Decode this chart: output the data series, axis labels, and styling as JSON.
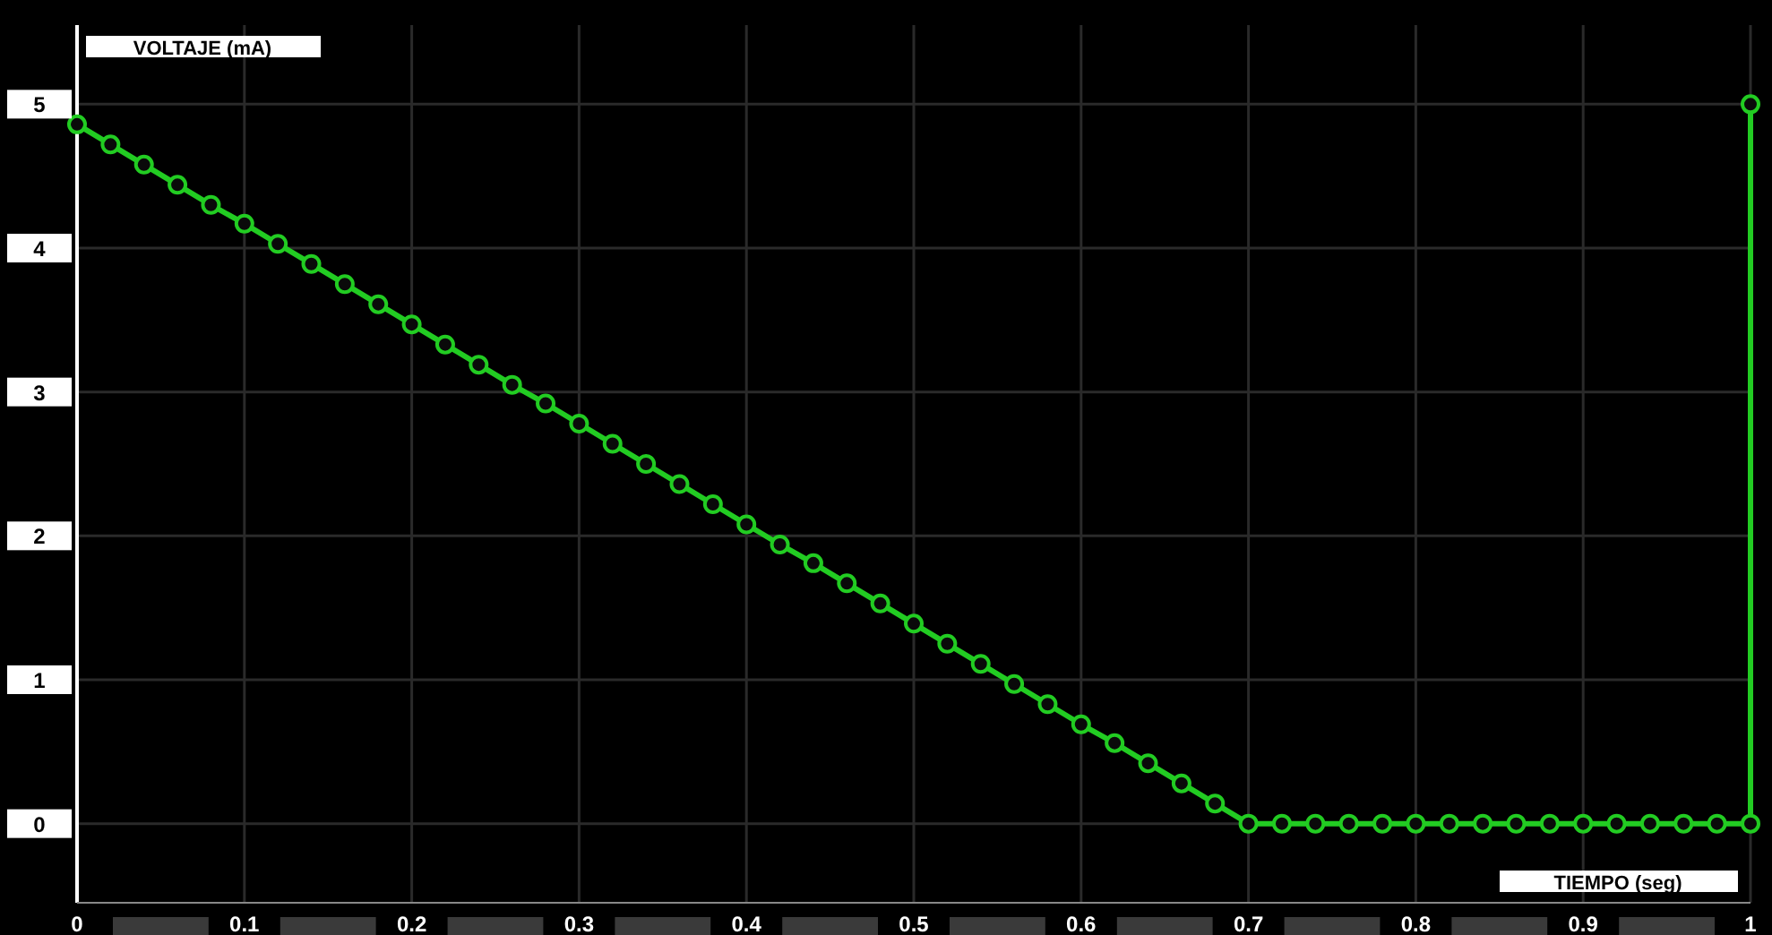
{
  "chart_data": {
    "type": "line",
    "xlabel": "TIEMPO (seg)",
    "ylabel": "VOLTAJE (mA)",
    "x": [
      0,
      0.02,
      0.04,
      0.06,
      0.08,
      0.1,
      0.12,
      0.14,
      0.16,
      0.18,
      0.2,
      0.22,
      0.24,
      0.26,
      0.28,
      0.3,
      0.32,
      0.34,
      0.36,
      0.38,
      0.4,
      0.42,
      0.44,
      0.46,
      0.48,
      0.5,
      0.52,
      0.54,
      0.56,
      0.58,
      0.6,
      0.62,
      0.64,
      0.66,
      0.68,
      0.7,
      0.72,
      0.74,
      0.76,
      0.78,
      0.8,
      0.82,
      0.84,
      0.86,
      0.88,
      0.9,
      0.92,
      0.94,
      0.96,
      0.98,
      1,
      1
    ],
    "series": [
      {
        "color": "#22cc22",
        "values": [
          4.86,
          4.72,
          4.58,
          4.44,
          4.3,
          4.17,
          4.03,
          3.89,
          3.75,
          3.61,
          3.47,
          3.33,
          3.19,
          3.05,
          2.92,
          2.78,
          2.64,
          2.5,
          2.36,
          2.22,
          2.08,
          1.94,
          1.81,
          1.67,
          1.53,
          1.39,
          1.25,
          1.11,
          0.97,
          0.83,
          0.69,
          0.56,
          0.42,
          0.28,
          0.14,
          0,
          0,
          0,
          0,
          0,
          0,
          0,
          0,
          0,
          0,
          0,
          0,
          0,
          0,
          0,
          0,
          5
        ]
      }
    ],
    "xlim": [
      0,
      1
    ],
    "xticks": [
      0,
      0.1,
      0.2,
      0.3,
      0.4,
      0.5,
      0.6,
      0.7,
      0.8,
      0.9,
      1
    ],
    "ylim": [
      -0.55,
      5.55
    ],
    "yticks": [
      0,
      1,
      2,
      3,
      4,
      5
    ],
    "grid": true,
    "marker": "circle",
    "line_style": "solid"
  }
}
